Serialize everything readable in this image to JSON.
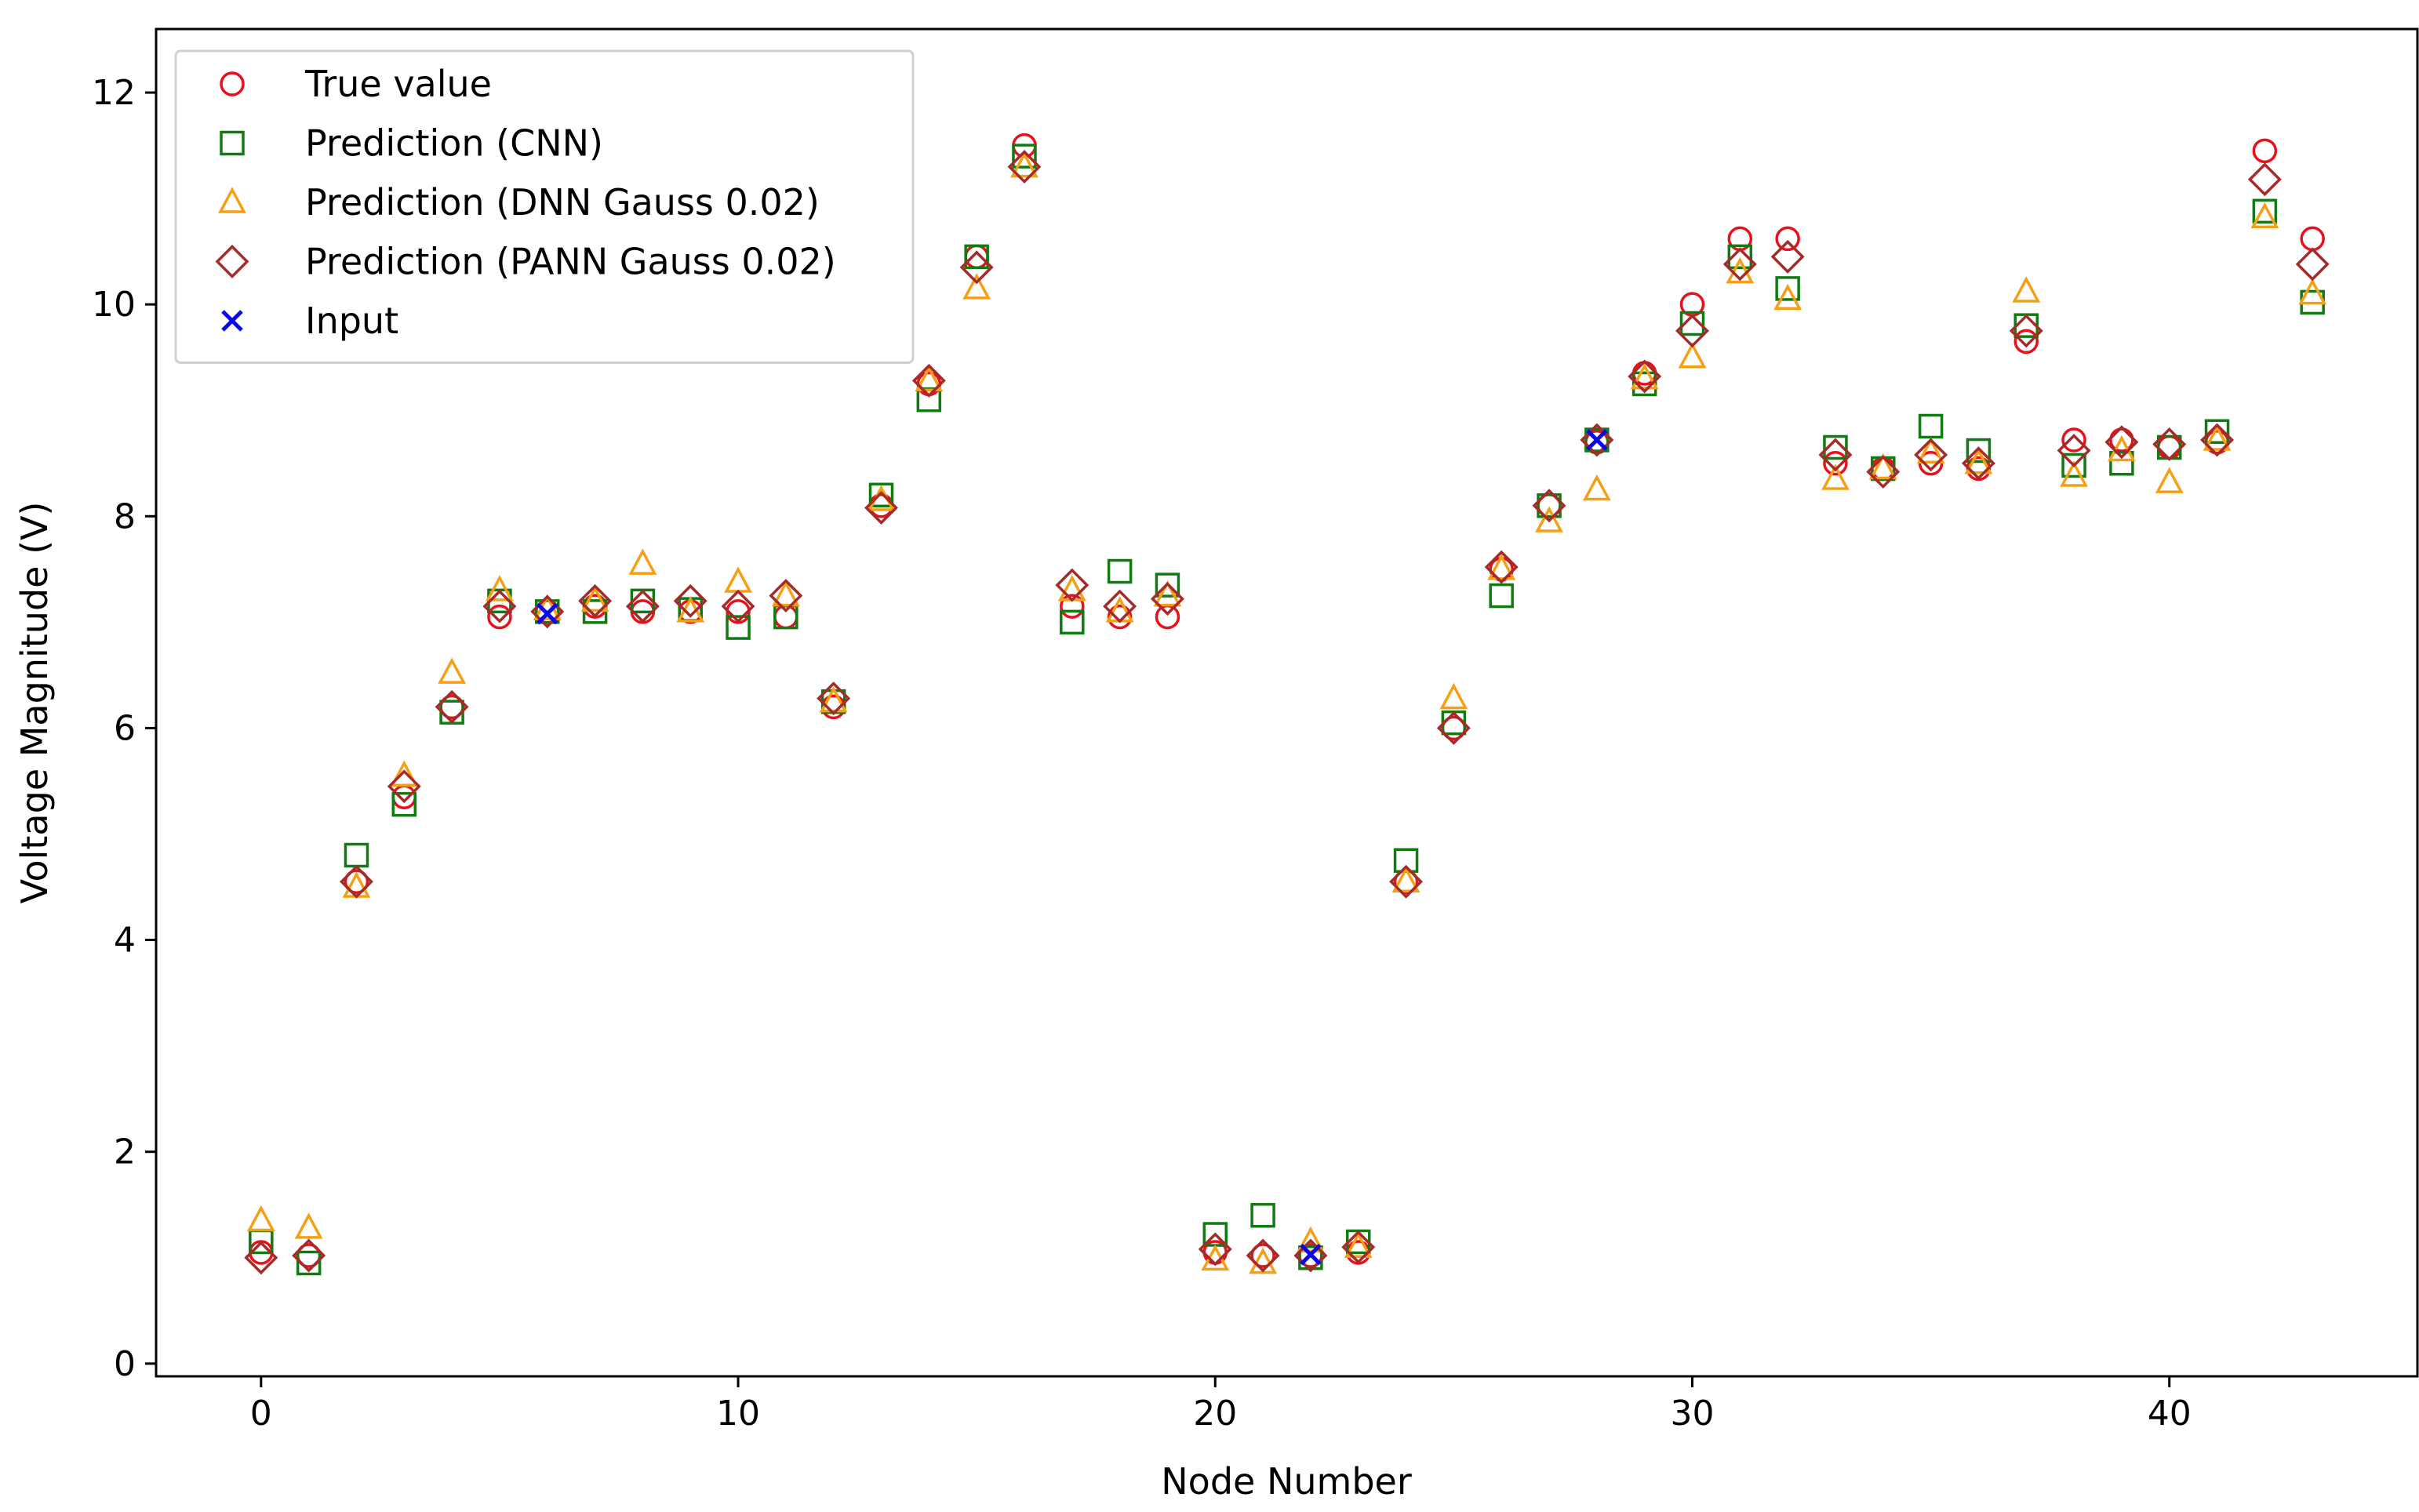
{
  "chart_data": {
    "type": "scatter",
    "title": "",
    "xlabel": "Node Number",
    "ylabel": "Voltage Magnitude (V)",
    "xlim": [
      -2.2,
      45.2
    ],
    "ylim": [
      -0.12,
      12.6
    ],
    "xticks": [
      0,
      10,
      20,
      30,
      40
    ],
    "yticks": [
      0,
      2,
      4,
      6,
      8,
      10,
      12
    ],
    "legend_position": "top-left",
    "series": [
      {
        "name": "True value",
        "marker": "circle",
        "color": "#e8111b",
        "x": [
          0,
          1,
          2,
          3,
          4,
          5,
          6,
          7,
          8,
          9,
          10,
          11,
          12,
          13,
          14,
          15,
          16,
          17,
          18,
          19,
          20,
          21,
          22,
          23,
          24,
          25,
          26,
          27,
          28,
          29,
          30,
          31,
          32,
          33,
          34,
          35,
          36,
          37,
          38,
          39,
          40,
          41,
          42,
          43
        ],
        "y": [
          1.05,
          1.02,
          4.55,
          5.35,
          6.2,
          7.05,
          7.1,
          7.15,
          7.1,
          7.1,
          7.1,
          7.05,
          6.2,
          8.1,
          9.25,
          10.45,
          11.5,
          7.15,
          7.05,
          7.05,
          1.05,
          1.02,
          1.02,
          1.05,
          4.55,
          6.0,
          7.5,
          8.1,
          8.7,
          9.35,
          10.0,
          10.62,
          10.62,
          8.5,
          8.45,
          8.5,
          8.45,
          9.65,
          8.72,
          8.72,
          8.65,
          8.7,
          11.45,
          10.62
        ]
      },
      {
        "name": "Prediction (CNN)",
        "marker": "square",
        "color": "#127a12",
        "x": [
          0,
          1,
          2,
          3,
          4,
          5,
          6,
          7,
          8,
          9,
          10,
          11,
          12,
          13,
          14,
          15,
          16,
          17,
          18,
          19,
          20,
          21,
          22,
          23,
          24,
          25,
          26,
          27,
          28,
          29,
          30,
          31,
          32,
          33,
          34,
          35,
          36,
          37,
          38,
          39,
          40,
          41,
          42,
          43
        ],
        "y": [
          1.15,
          0.95,
          4.8,
          5.28,
          6.15,
          7.2,
          7.1,
          7.1,
          7.2,
          7.12,
          6.95,
          7.05,
          6.25,
          8.2,
          9.1,
          10.45,
          11.4,
          7.0,
          7.48,
          7.35,
          1.22,
          1.4,
          1.0,
          1.15,
          4.75,
          6.05,
          7.25,
          8.1,
          8.72,
          9.25,
          9.82,
          10.45,
          10.15,
          8.65,
          8.45,
          8.85,
          8.62,
          9.8,
          8.48,
          8.5,
          8.65,
          8.8,
          10.88,
          10.02
        ]
      },
      {
        "name": "Prediction (DNN Gauss 0.02)",
        "marker": "triangle",
        "color": "#f5a014",
        "x": [
          0,
          1,
          2,
          3,
          4,
          5,
          6,
          7,
          8,
          9,
          10,
          11,
          12,
          13,
          14,
          15,
          16,
          17,
          18,
          19,
          20,
          21,
          22,
          23,
          24,
          25,
          26,
          27,
          28,
          29,
          30,
          31,
          32,
          33,
          34,
          35,
          36,
          37,
          38,
          39,
          40,
          41,
          42,
          43
        ],
        "y": [
          1.35,
          1.28,
          4.5,
          5.55,
          6.52,
          7.3,
          7.12,
          7.2,
          7.55,
          7.1,
          7.38,
          7.25,
          6.25,
          8.15,
          9.28,
          10.15,
          11.3,
          7.3,
          7.1,
          7.25,
          0.98,
          0.95,
          1.15,
          1.1,
          4.55,
          6.28,
          7.5,
          7.95,
          8.25,
          9.3,
          9.5,
          10.3,
          10.05,
          8.35,
          8.45,
          8.6,
          8.5,
          10.12,
          8.38,
          8.62,
          8.32,
          8.72,
          10.82,
          10.1
        ]
      },
      {
        "name": "Prediction (PANN Gauss 0.02)",
        "marker": "diamond",
        "color": "#a52a2a",
        "x": [
          0,
          1,
          2,
          3,
          4,
          5,
          6,
          7,
          8,
          9,
          10,
          11,
          12,
          13,
          14,
          15,
          16,
          17,
          18,
          19,
          20,
          21,
          22,
          23,
          24,
          25,
          26,
          27,
          28,
          29,
          30,
          31,
          32,
          33,
          34,
          35,
          36,
          37,
          38,
          39,
          40,
          41,
          42,
          43
        ],
        "y": [
          1.0,
          1.02,
          4.55,
          5.45,
          6.2,
          7.15,
          7.1,
          7.2,
          7.15,
          7.2,
          7.15,
          7.25,
          6.28,
          8.08,
          9.28,
          10.35,
          11.3,
          7.35,
          7.15,
          7.22,
          1.08,
          1.02,
          1.02,
          1.1,
          4.55,
          6.0,
          7.52,
          8.1,
          8.72,
          9.32,
          9.75,
          10.38,
          10.45,
          8.58,
          8.42,
          8.58,
          8.5,
          9.75,
          8.62,
          8.7,
          8.68,
          8.72,
          11.18,
          10.38
        ]
      },
      {
        "name": "Input",
        "marker": "x",
        "color": "#0a0ae6",
        "x": [
          6,
          22,
          28
        ],
        "y": [
          7.08,
          1.03,
          8.72
        ]
      }
    ]
  }
}
